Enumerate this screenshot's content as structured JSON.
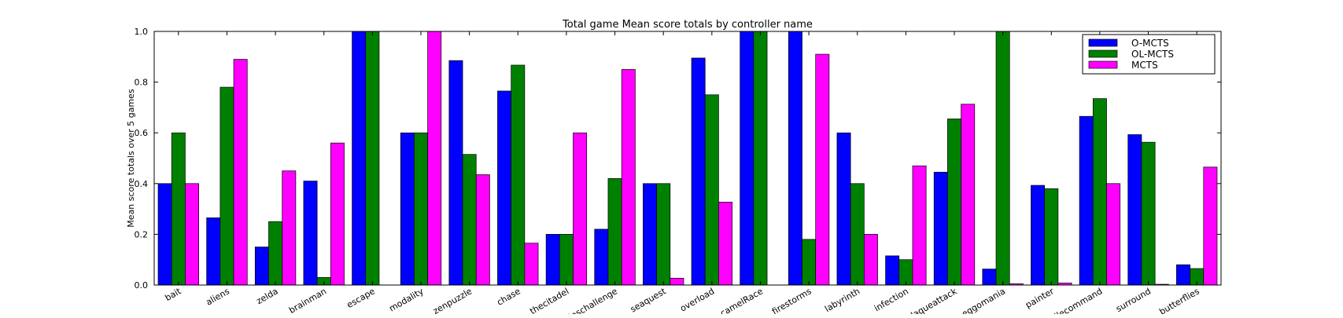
{
  "chart_data": {
    "type": "bar",
    "title": "Total game Mean score totals by controller name",
    "xlabel": "",
    "ylabel": "Mean score totals over 5 games",
    "ylim": [
      0,
      1.0
    ],
    "yticks": [
      "0.0",
      "0.2",
      "0.4",
      "0.6",
      "0.8",
      "1.0"
    ],
    "legend_position": "top-right",
    "grid": false,
    "categories": [
      "bait",
      "aliens",
      "zelda",
      "brainman",
      "escape",
      "modality",
      "zenpuzzle",
      "chase",
      "thecitadel",
      "chipschallenge",
      "seaquest",
      "overload",
      "camelRace",
      "firestorms",
      "labyrinth",
      "infection",
      "plaqueattack",
      "eggomania",
      "painter",
      "missilecommand",
      "surround",
      "butterflies"
    ],
    "series": [
      {
        "name": "O-MCTS",
        "color": "#0000ff",
        "values": [
          0.4,
          0.265,
          0.15,
          0.41,
          1.0,
          0.6,
          0.885,
          0.765,
          0.2,
          0.22,
          0.4,
          0.895,
          1.0,
          1.0,
          0.6,
          0.115,
          0.445,
          0.063,
          0.393,
          0.665,
          0.593,
          0.08
        ]
      },
      {
        "name": "OL-MCTS",
        "color": "#008000",
        "values": [
          0.6,
          0.78,
          0.25,
          0.03,
          1.0,
          0.6,
          0.515,
          0.867,
          0.2,
          0.42,
          0.4,
          0.75,
          1.0,
          0.18,
          0.4,
          0.1,
          0.655,
          1.0,
          0.38,
          0.735,
          0.563,
          0.065
        ]
      },
      {
        "name": "MCTS",
        "color": "#ff00ff",
        "values": [
          0.4,
          0.89,
          0.45,
          0.56,
          0.0,
          1.0,
          0.435,
          0.165,
          0.6,
          0.85,
          0.027,
          0.327,
          0.0,
          0.91,
          0.2,
          0.47,
          0.713,
          0.005,
          0.008,
          0.4,
          0.003,
          0.465
        ]
      }
    ]
  }
}
